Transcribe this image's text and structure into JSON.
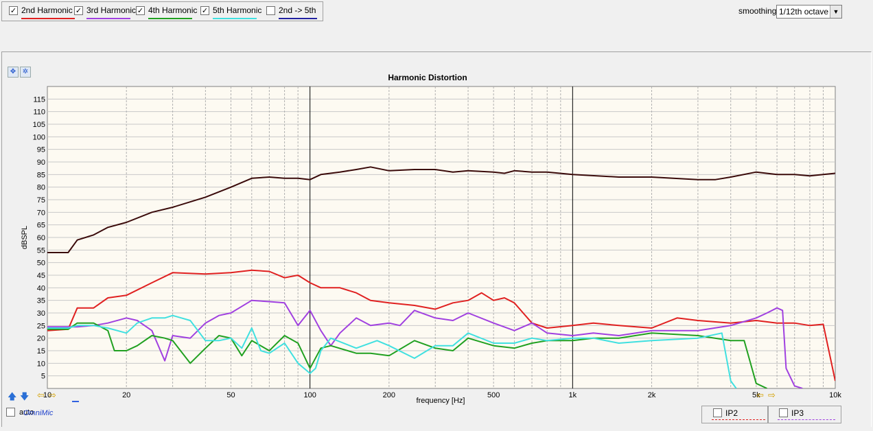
{
  "legend": [
    {
      "label": "2nd Harmonic",
      "checked": true,
      "color": "#e02020"
    },
    {
      "label": "3rd Harmonic",
      "checked": true,
      "color": "#a040e0"
    },
    {
      "label": "4th Harmonic",
      "checked": true,
      "color": "#20a020"
    },
    {
      "label": "5th Harmonic",
      "checked": true,
      "color": "#40e0e0"
    },
    {
      "label": "2nd -> 5th",
      "checked": false,
      "color": "#2020a0"
    }
  ],
  "smoothing": {
    "label": "smoothing",
    "value": "1/12th octave"
  },
  "auto_label": "auto",
  "brand": "OmniMic",
  "ip": [
    {
      "label": "IP2",
      "color": "#e02020"
    },
    {
      "label": "IP3",
      "color": "#a040e0"
    }
  ],
  "chart_data": {
    "type": "line",
    "title": "Harmonic Distortion",
    "xlabel": "frequency [Hz]",
    "ylabel": "dBSPL",
    "xscale": "log",
    "xlim": [
      10,
      10000
    ],
    "ylim": [
      0,
      120
    ],
    "xticks": [
      10,
      20,
      50,
      100,
      200,
      500,
      1000,
      2000,
      5000,
      10000
    ],
    "xtick_labels": [
      "10",
      "20",
      "50",
      "100",
      "200",
      "500",
      "1k",
      "2k",
      "5k",
      "10k"
    ],
    "yticks": [
      5,
      10,
      15,
      20,
      25,
      30,
      35,
      40,
      45,
      50,
      55,
      60,
      65,
      70,
      75,
      80,
      85,
      90,
      95,
      100,
      105,
      110,
      115
    ],
    "grid": true,
    "series": [
      {
        "name": "",
        "color": "#3a0a0a",
        "width": 2,
        "x": [
          10,
          12,
          13,
          15,
          17,
          20,
          25,
          30,
          40,
          50,
          60,
          70,
          80,
          90,
          100,
          110,
          130,
          150,
          170,
          200,
          250,
          300,
          350,
          400,
          500,
          550,
          600,
          700,
          800,
          1000,
          1500,
          2000,
          3000,
          3500,
          4000,
          5000,
          6000,
          7000,
          8000,
          10000
        ],
        "y": [
          54,
          54,
          59,
          61,
          64,
          66,
          70,
          72,
          76,
          80,
          83.5,
          84,
          83.5,
          83.5,
          83,
          85,
          86,
          87,
          88,
          86.5,
          87,
          87,
          86,
          86.5,
          86,
          85.5,
          86.5,
          86,
          86,
          85,
          84,
          84,
          83,
          83,
          84,
          86,
          85,
          85,
          84.5,
          85.5
        ]
      },
      {
        "name": "2nd Harmonic",
        "color": "#e02020",
        "width": 2,
        "x": [
          10,
          12,
          13,
          15,
          17,
          20,
          25,
          30,
          40,
          50,
          60,
          70,
          80,
          90,
          100,
          110,
          130,
          150,
          170,
          200,
          250,
          300,
          350,
          400,
          450,
          500,
          550,
          600,
          700,
          800,
          1000,
          1200,
          1500,
          2000,
          2500,
          3000,
          4000,
          5000,
          6000,
          7000,
          8000,
          9000,
          10000
        ],
        "y": [
          23,
          23.5,
          32,
          32,
          36,
          37,
          42,
          46,
          45.5,
          46,
          47,
          46.5,
          44,
          45,
          42,
          40,
          40,
          38,
          35,
          34,
          33,
          31.5,
          34,
          35,
          38,
          35,
          36,
          34,
          26,
          24,
          25,
          26,
          25,
          24,
          28,
          27,
          26,
          27,
          26,
          26,
          25,
          25.5,
          3
        ]
      },
      {
        "name": "3rd Harmonic",
        "color": "#a040e0",
        "width": 2,
        "x": [
          10,
          13,
          15,
          17,
          20,
          22,
          25,
          28,
          30,
          35,
          40,
          45,
          50,
          60,
          70,
          80,
          90,
          100,
          110,
          120,
          130,
          150,
          170,
          200,
          220,
          250,
          300,
          350,
          400,
          500,
          600,
          700,
          800,
          1000,
          1200,
          1500,
          2000,
          3000,
          4000,
          5000,
          5500,
          6000,
          6300,
          6500,
          7000,
          7500
        ],
        "y": [
          24.5,
          24.5,
          25,
          26,
          28,
          27,
          23,
          11,
          21,
          20,
          26,
          29,
          30,
          35,
          34.5,
          34,
          25,
          31,
          23,
          17,
          22,
          28,
          25,
          26,
          25,
          31,
          28,
          27,
          30,
          26,
          23,
          26,
          22,
          21,
          22,
          21,
          23,
          23,
          25,
          28,
          30,
          32,
          31,
          8,
          1,
          0
        ]
      },
      {
        "name": "4th Harmonic",
        "color": "#20a020",
        "width": 2,
        "x": [
          10,
          12,
          13,
          15,
          17,
          18,
          20,
          22,
          25,
          28,
          30,
          35,
          40,
          45,
          50,
          55,
          60,
          70,
          80,
          90,
          100,
          110,
          120,
          150,
          170,
          200,
          250,
          300,
          350,
          400,
          500,
          600,
          700,
          800,
          1000,
          1200,
          1500,
          2000,
          3000,
          4000,
          4500,
          5000,
          5500
        ],
        "y": [
          23.5,
          23.5,
          26,
          26,
          23,
          15,
          15,
          17,
          21,
          20,
          19,
          10,
          16,
          21,
          20,
          13,
          19,
          15,
          21,
          18,
          8,
          16,
          17,
          14,
          14,
          13,
          19,
          16,
          15,
          20,
          17,
          16,
          18,
          19,
          19,
          20,
          20,
          22,
          21,
          19,
          19,
          2,
          0
        ]
      },
      {
        "name": "5th Harmonic",
        "color": "#40e0e0",
        "width": 2,
        "x": [
          10,
          12,
          13,
          15,
          17,
          20,
          22,
          25,
          28,
          30,
          35,
          40,
          45,
          50,
          55,
          60,
          65,
          70,
          80,
          90,
          100,
          105,
          110,
          120,
          150,
          180,
          200,
          250,
          300,
          350,
          400,
          500,
          600,
          700,
          800,
          1000,
          1200,
          1500,
          2000,
          3000,
          3700,
          4000,
          4200
        ],
        "y": [
          24,
          24,
          25,
          25,
          24,
          22,
          26,
          28,
          28,
          29,
          27,
          19,
          19,
          20,
          16,
          24,
          15,
          14,
          18,
          10,
          6,
          8,
          15,
          20,
          16,
          19,
          17,
          12,
          17,
          17,
          22,
          18,
          18,
          20,
          19,
          20,
          20,
          18,
          19,
          20,
          22,
          3,
          0
        ]
      }
    ]
  }
}
